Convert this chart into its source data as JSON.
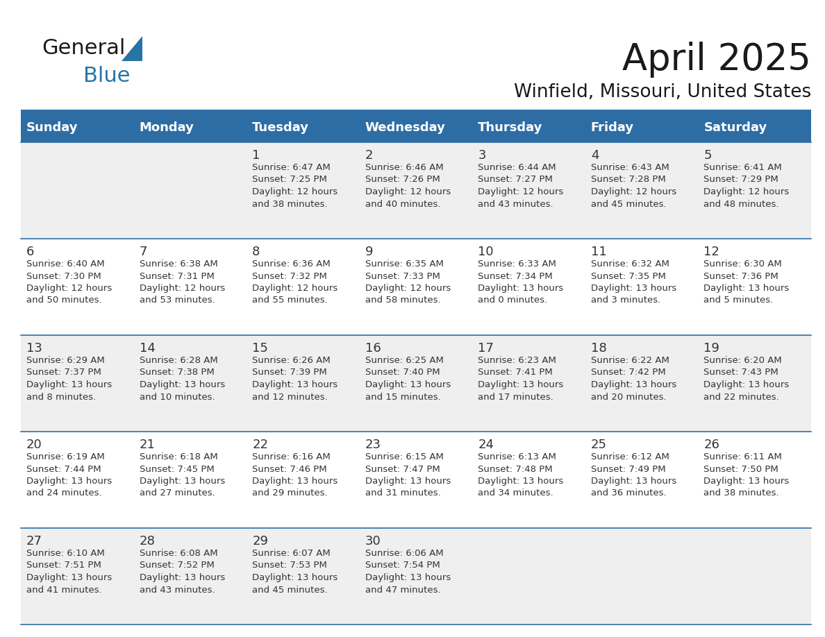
{
  "title": "April 2025",
  "subtitle": "Winfield, Missouri, United States",
  "header_bg_color": "#2E6DA4",
  "header_text_color": "#FFFFFF",
  "day_names": [
    "Sunday",
    "Monday",
    "Tuesday",
    "Wednesday",
    "Thursday",
    "Friday",
    "Saturday"
  ],
  "row_bg": [
    "#EFEFEF",
    "#FFFFFF",
    "#EFEFEF",
    "#FFFFFF",
    "#EFEFEF"
  ],
  "cell_text_color": "#333333",
  "border_color": "#2E6DA4",
  "days": [
    {
      "day": null,
      "text": ""
    },
    {
      "day": null,
      "text": ""
    },
    {
      "day": 1,
      "text": "Sunrise: 6:47 AM\nSunset: 7:25 PM\nDaylight: 12 hours\nand 38 minutes."
    },
    {
      "day": 2,
      "text": "Sunrise: 6:46 AM\nSunset: 7:26 PM\nDaylight: 12 hours\nand 40 minutes."
    },
    {
      "day": 3,
      "text": "Sunrise: 6:44 AM\nSunset: 7:27 PM\nDaylight: 12 hours\nand 43 minutes."
    },
    {
      "day": 4,
      "text": "Sunrise: 6:43 AM\nSunset: 7:28 PM\nDaylight: 12 hours\nand 45 minutes."
    },
    {
      "day": 5,
      "text": "Sunrise: 6:41 AM\nSunset: 7:29 PM\nDaylight: 12 hours\nand 48 minutes."
    },
    {
      "day": 6,
      "text": "Sunrise: 6:40 AM\nSunset: 7:30 PM\nDaylight: 12 hours\nand 50 minutes."
    },
    {
      "day": 7,
      "text": "Sunrise: 6:38 AM\nSunset: 7:31 PM\nDaylight: 12 hours\nand 53 minutes."
    },
    {
      "day": 8,
      "text": "Sunrise: 6:36 AM\nSunset: 7:32 PM\nDaylight: 12 hours\nand 55 minutes."
    },
    {
      "day": 9,
      "text": "Sunrise: 6:35 AM\nSunset: 7:33 PM\nDaylight: 12 hours\nand 58 minutes."
    },
    {
      "day": 10,
      "text": "Sunrise: 6:33 AM\nSunset: 7:34 PM\nDaylight: 13 hours\nand 0 minutes."
    },
    {
      "day": 11,
      "text": "Sunrise: 6:32 AM\nSunset: 7:35 PM\nDaylight: 13 hours\nand 3 minutes."
    },
    {
      "day": 12,
      "text": "Sunrise: 6:30 AM\nSunset: 7:36 PM\nDaylight: 13 hours\nand 5 minutes."
    },
    {
      "day": 13,
      "text": "Sunrise: 6:29 AM\nSunset: 7:37 PM\nDaylight: 13 hours\nand 8 minutes."
    },
    {
      "day": 14,
      "text": "Sunrise: 6:28 AM\nSunset: 7:38 PM\nDaylight: 13 hours\nand 10 minutes."
    },
    {
      "day": 15,
      "text": "Sunrise: 6:26 AM\nSunset: 7:39 PM\nDaylight: 13 hours\nand 12 minutes."
    },
    {
      "day": 16,
      "text": "Sunrise: 6:25 AM\nSunset: 7:40 PM\nDaylight: 13 hours\nand 15 minutes."
    },
    {
      "day": 17,
      "text": "Sunrise: 6:23 AM\nSunset: 7:41 PM\nDaylight: 13 hours\nand 17 minutes."
    },
    {
      "day": 18,
      "text": "Sunrise: 6:22 AM\nSunset: 7:42 PM\nDaylight: 13 hours\nand 20 minutes."
    },
    {
      "day": 19,
      "text": "Sunrise: 6:20 AM\nSunset: 7:43 PM\nDaylight: 13 hours\nand 22 minutes."
    },
    {
      "day": 20,
      "text": "Sunrise: 6:19 AM\nSunset: 7:44 PM\nDaylight: 13 hours\nand 24 minutes."
    },
    {
      "day": 21,
      "text": "Sunrise: 6:18 AM\nSunset: 7:45 PM\nDaylight: 13 hours\nand 27 minutes."
    },
    {
      "day": 22,
      "text": "Sunrise: 6:16 AM\nSunset: 7:46 PM\nDaylight: 13 hours\nand 29 minutes."
    },
    {
      "day": 23,
      "text": "Sunrise: 6:15 AM\nSunset: 7:47 PM\nDaylight: 13 hours\nand 31 minutes."
    },
    {
      "day": 24,
      "text": "Sunrise: 6:13 AM\nSunset: 7:48 PM\nDaylight: 13 hours\nand 34 minutes."
    },
    {
      "day": 25,
      "text": "Sunrise: 6:12 AM\nSunset: 7:49 PM\nDaylight: 13 hours\nand 36 minutes."
    },
    {
      "day": 26,
      "text": "Sunrise: 6:11 AM\nSunset: 7:50 PM\nDaylight: 13 hours\nand 38 minutes."
    },
    {
      "day": 27,
      "text": "Sunrise: 6:10 AM\nSunset: 7:51 PM\nDaylight: 13 hours\nand 41 minutes."
    },
    {
      "day": 28,
      "text": "Sunrise: 6:08 AM\nSunset: 7:52 PM\nDaylight: 13 hours\nand 43 minutes."
    },
    {
      "day": 29,
      "text": "Sunrise: 6:07 AM\nSunset: 7:53 PM\nDaylight: 13 hours\nand 45 minutes."
    },
    {
      "day": 30,
      "text": "Sunrise: 6:06 AM\nSunset: 7:54 PM\nDaylight: 13 hours\nand 47 minutes."
    },
    {
      "day": null,
      "text": ""
    },
    {
      "day": null,
      "text": ""
    },
    {
      "day": null,
      "text": ""
    }
  ],
  "logo_general_color": "#1A1A1A",
  "logo_blue_color": "#2874A6",
  "title_fontsize": 38,
  "subtitle_fontsize": 19,
  "day_name_fontsize": 13,
  "day_num_fontsize": 13,
  "cell_text_fontsize": 9.5
}
